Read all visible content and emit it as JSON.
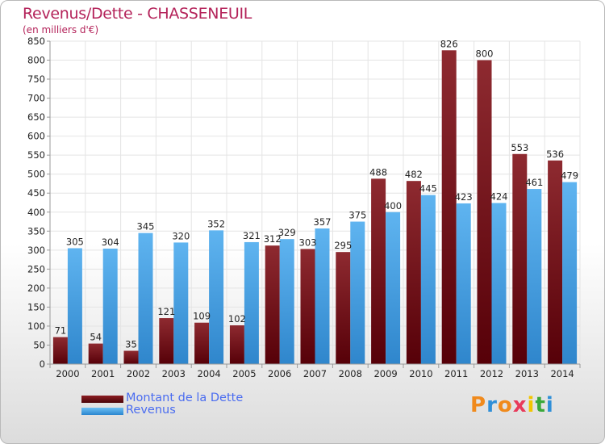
{
  "chart_data": {
    "type": "bar",
    "title": "Revenus/Dette - CHASSENEUIL",
    "subtitle": "(en milliers d'€)",
    "categories": [
      "2000",
      "2001",
      "2002",
      "2003",
      "2004",
      "2005",
      "2006",
      "2007",
      "2008",
      "2009",
      "2010",
      "2011",
      "2012",
      "2013",
      "2014"
    ],
    "series": [
      {
        "name": "Montant de la Dette",
        "color": "#7a1117",
        "values": [
          71,
          54,
          35,
          121,
          109,
          102,
          312,
          303,
          295,
          488,
          482,
          826,
          800,
          553,
          536
        ]
      },
      {
        "name": "Revenus",
        "color": "#4aa3e8",
        "values": [
          305,
          304,
          345,
          320,
          352,
          321,
          329,
          357,
          375,
          400,
          445,
          423,
          424,
          461,
          479
        ]
      }
    ],
    "ylim": [
      0,
      850
    ],
    "yticks": [
      0,
      50,
      100,
      150,
      200,
      250,
      300,
      350,
      400,
      450,
      500,
      550,
      600,
      650,
      700,
      750,
      800,
      850
    ],
    "grid": true,
    "legend_position": "bottom-left"
  },
  "logo": {
    "letters": [
      "P",
      "r",
      "o",
      "x",
      "i",
      "t",
      "i"
    ],
    "colors": [
      "#f08a1c",
      "#2f8fd8",
      "#f08a1c",
      "#e83a5a",
      "#f2c500",
      "#3aa83a",
      "#2f8fd8"
    ]
  }
}
